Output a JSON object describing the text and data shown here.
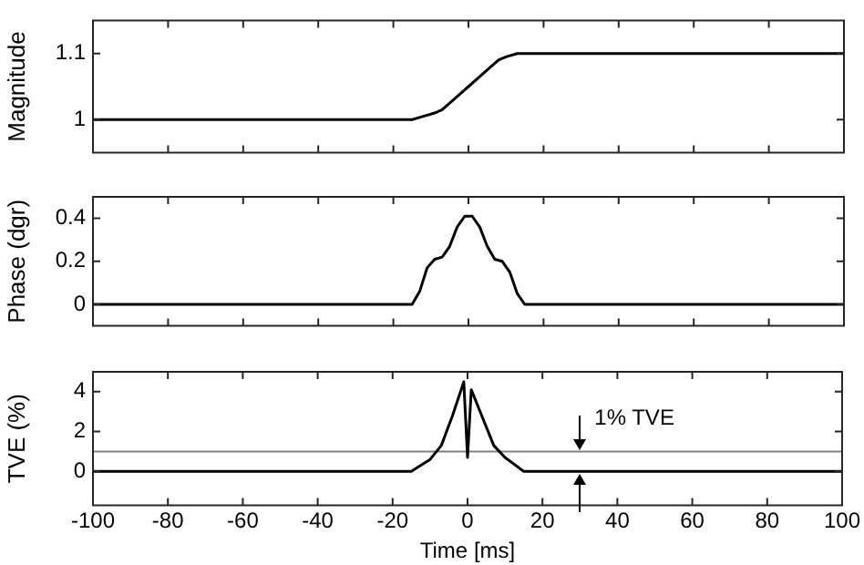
{
  "chart_data": [
    {
      "type": "line",
      "ylabel": "Magnitude",
      "xlim": [
        -100,
        100
      ],
      "xticks": [
        -100,
        -80,
        -60,
        -40,
        -20,
        0,
        20,
        40,
        60,
        80,
        100
      ],
      "ylim": [
        0.95,
        1.15
      ],
      "yticks": [
        1,
        1.1
      ],
      "tick_labels": "y",
      "series": [
        {
          "color": "#000000",
          "x": [
            -100,
            -15,
            -12,
            -9,
            -7,
            -3,
            0,
            4,
            8,
            10,
            13,
            17,
            100
          ],
          "values": [
            1,
            1,
            1.005,
            1.01,
            1.015,
            1.035,
            1.05,
            1.07,
            1.09,
            1.095,
            1.1,
            1.1,
            1.1
          ]
        }
      ]
    },
    {
      "type": "line",
      "ylabel": "Phase (dgr)",
      "xlim": [
        -100,
        100
      ],
      "xticks": [
        -100,
        -80,
        -60,
        -40,
        -20,
        0,
        20,
        40,
        60,
        80,
        100
      ],
      "ylim": [
        -0.1,
        0.5
      ],
      "yticks": [
        0,
        0.2,
        0.4
      ],
      "tick_labels": "y",
      "series": [
        {
          "color": "#000000",
          "x": [
            -100,
            -15,
            -13,
            -11,
            -9,
            -7,
            -5,
            -3,
            -1,
            1,
            3,
            5,
            7,
            9,
            11,
            13,
            15,
            100
          ],
          "values": [
            0,
            0,
            0.06,
            0.17,
            0.21,
            0.22,
            0.27,
            0.36,
            0.41,
            0.41,
            0.36,
            0.27,
            0.21,
            0.2,
            0.15,
            0.05,
            0,
            0
          ]
        }
      ]
    },
    {
      "type": "line",
      "xlabel": "Time [ms]",
      "ylabel": "TVE (%)",
      "xlim": [
        -100,
        100
      ],
      "xticks": [
        -100,
        -80,
        -60,
        -40,
        -20,
        0,
        20,
        40,
        60,
        80,
        100
      ],
      "ylim": [
        -1.7,
        5
      ],
      "yticks": [
        0,
        2,
        4
      ],
      "ref_lines": [
        {
          "axis": "y",
          "value": 1,
          "color": "#808080"
        }
      ],
      "annotations": [
        {
          "text": "1% TVE",
          "x": 30,
          "y": 1
        }
      ],
      "series": [
        {
          "color": "#000000",
          "x": [
            -100,
            -15,
            -10,
            -7,
            -4,
            -1,
            0,
            1,
            4,
            7,
            10,
            15,
            100
          ],
          "values": [
            0,
            0,
            0.6,
            1.3,
            2.8,
            4.5,
            0.7,
            4.1,
            2.7,
            1.3,
            0.7,
            0,
            0
          ]
        }
      ]
    }
  ]
}
